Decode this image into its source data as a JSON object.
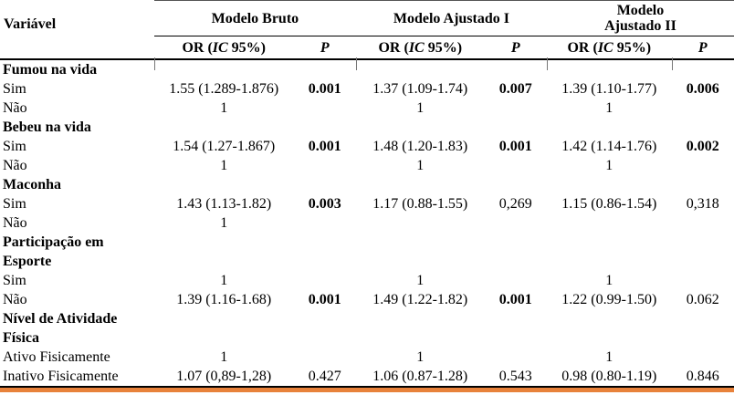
{
  "table": {
    "variable_header": "Variável",
    "groups": [
      "Modelo Bruto",
      "Modelo Ajustado I",
      "Modelo\nAjustado II"
    ],
    "subheader": {
      "or_prefix": "OR (",
      "or_italic": "IC",
      "or_suffix": " 95%)",
      "p": "P"
    },
    "rows": [
      {
        "type": "group",
        "label": "Fumou na vida",
        "cells": [
          {
            "or": "",
            "p": ""
          },
          {
            "or": "",
            "p": ""
          },
          {
            "or": "",
            "p": ""
          }
        ]
      },
      {
        "type": "data",
        "label": "Sim",
        "cells": [
          {
            "or": "1.55 (1.289-1.876)",
            "p": "0.001",
            "bold": true
          },
          {
            "or": "1.37 (1.09-1.74)",
            "p": "0.007",
            "bold": true
          },
          {
            "or": "1.39 (1.10-1.77)",
            "p": "0.006",
            "bold": true
          }
        ]
      },
      {
        "type": "data",
        "label": "Não",
        "cells": [
          {
            "or": "1",
            "p": ""
          },
          {
            "or": "1",
            "p": ""
          },
          {
            "or": "1",
            "p": ""
          }
        ]
      },
      {
        "type": "group",
        "label": "Bebeu na vida",
        "cells": [
          {
            "or": "",
            "p": ""
          },
          {
            "or": "",
            "p": ""
          },
          {
            "or": "",
            "p": ""
          }
        ]
      },
      {
        "type": "data",
        "label": "Sim",
        "cells": [
          {
            "or": "1.54 (1.27-1.867)",
            "p": "0.001",
            "bold": true
          },
          {
            "or": "1.48 (1.20-1.83)",
            "p": "0.001",
            "bold": true
          },
          {
            "or": "1.42 (1.14-1.76)",
            "p": "0.002",
            "bold": true
          }
        ]
      },
      {
        "type": "data",
        "label": "Não",
        "cells": [
          {
            "or": "1",
            "p": ""
          },
          {
            "or": "1",
            "p": ""
          },
          {
            "or": "1",
            "p": ""
          }
        ]
      },
      {
        "type": "group",
        "label": "Maconha",
        "cells": [
          {
            "or": "",
            "p": ""
          },
          {
            "or": "",
            "p": ""
          },
          {
            "or": "",
            "p": ""
          }
        ]
      },
      {
        "type": "data",
        "label": "Sim",
        "cells": [
          {
            "or": "1.43 (1.13-1.82)",
            "p": "0.003",
            "bold": true
          },
          {
            "or": "1.17 (0.88-1.55)",
            "p": "0,269",
            "bold": false
          },
          {
            "or": "1.15 (0.86-1.54)",
            "p": "0,318",
            "bold": false
          }
        ]
      },
      {
        "type": "data",
        "label": "Não",
        "cells": [
          {
            "or": "1",
            "p": ""
          },
          {
            "or": "",
            "p": ""
          },
          {
            "or": "",
            "p": ""
          }
        ]
      },
      {
        "type": "group",
        "label": "Participação em\nEsporte",
        "cells": [
          {
            "or": "",
            "p": ""
          },
          {
            "or": "",
            "p": ""
          },
          {
            "or": "",
            "p": ""
          }
        ]
      },
      {
        "type": "data",
        "label": "Sim",
        "cells": [
          {
            "or": "1",
            "p": ""
          },
          {
            "or": "1",
            "p": ""
          },
          {
            "or": "1",
            "p": ""
          }
        ]
      },
      {
        "type": "data",
        "label": "Não",
        "cells": [
          {
            "or": "1.39 (1.16-1.68)",
            "p": "0.001",
            "bold": true
          },
          {
            "or": "1.49 (1.22-1.82)",
            "p": "0.001",
            "bold": true
          },
          {
            "or": "1.22 (0.99-1.50)",
            "p": "0.062",
            "bold": false
          }
        ]
      },
      {
        "type": "group",
        "label": "Nível de Atividade\nFísica",
        "cells": [
          {
            "or": "",
            "p": ""
          },
          {
            "or": "",
            "p": ""
          },
          {
            "or": "",
            "p": ""
          }
        ]
      },
      {
        "type": "data",
        "label": "Ativo Fisicamente",
        "cells": [
          {
            "or": "1",
            "p": ""
          },
          {
            "or": "1",
            "p": ""
          },
          {
            "or": "1",
            "p": ""
          }
        ]
      },
      {
        "type": "data",
        "label": "Inativo Fisicamente",
        "cells": [
          {
            "or": "1.07 (0,89-1,28)",
            "p": "0.427",
            "bold": false
          },
          {
            "or": "1.06 (0.87-1.28)",
            "p": "0.543",
            "bold": false
          },
          {
            "or": "0.98 (0.80-1.19)",
            "p": "0.846",
            "bold": false
          }
        ]
      }
    ]
  },
  "colors": {
    "bottom_bar": "#e8823b",
    "rule": "#000000"
  }
}
